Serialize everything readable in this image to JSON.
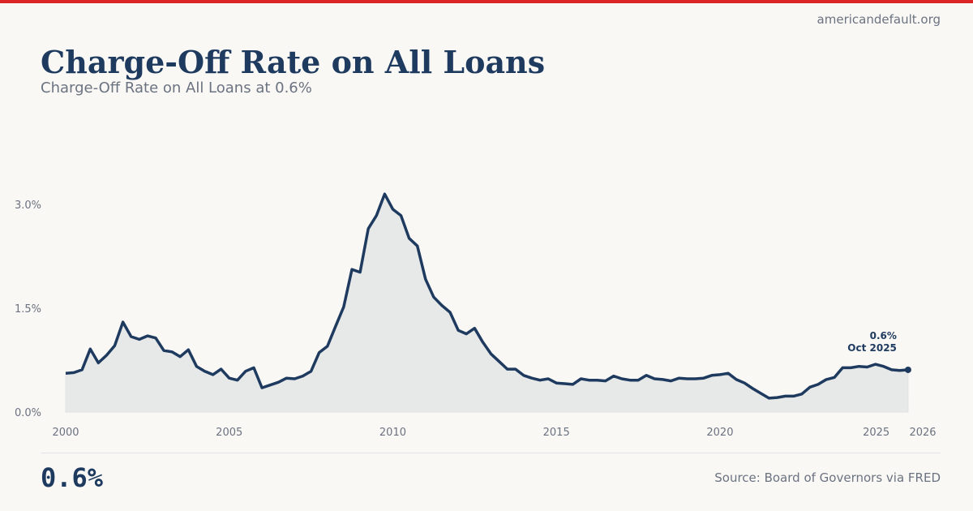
{
  "site": "americandefault.org",
  "title": "Charge-Off Rate on All Loans",
  "subtitle": "Charge-Off Rate on All Loans at 0.6%",
  "headline_value": "0.6%",
  "source": "Source: Board of Governors via FRED",
  "colors": {
    "accent": "#dc2626",
    "line": "#1e3a5f",
    "fill": "#e7e9e9"
  },
  "chart_data": {
    "type": "area",
    "title": "Charge-Off Rate on All Loans",
    "xlabel": "",
    "ylabel": "",
    "x_start": 2000,
    "x_step": 0.25,
    "xlim": [
      2000,
      2026
    ],
    "ylim": [
      0,
      3.0
    ],
    "x_ticks": [
      "2000",
      "2005",
      "2010",
      "2015",
      "2020",
      "2025",
      "2026"
    ],
    "x_tick_values": [
      2000,
      2005,
      2010,
      2015,
      2020,
      2025,
      2026
    ],
    "y_ticks": [
      "0.0%",
      "1.5%",
      "3.0%"
    ],
    "y_tick_values": [
      0,
      1.5,
      3.0
    ],
    "grid": false,
    "values": [
      0.56,
      0.57,
      0.61,
      0.91,
      0.71,
      0.82,
      0.96,
      1.3,
      1.09,
      1.05,
      1.1,
      1.07,
      0.89,
      0.87,
      0.8,
      0.9,
      0.66,
      0.59,
      0.54,
      0.62,
      0.49,
      0.46,
      0.59,
      0.64,
      0.35,
      0.39,
      0.43,
      0.49,
      0.48,
      0.52,
      0.59,
      0.86,
      0.95,
      1.24,
      1.52,
      2.06,
      2.02,
      2.65,
      2.84,
      3.15,
      2.93,
      2.84,
      2.51,
      2.4,
      1.92,
      1.66,
      1.54,
      1.44,
      1.18,
      1.13,
      1.21,
      1.01,
      0.84,
      0.73,
      0.62,
      0.62,
      0.53,
      0.49,
      0.46,
      0.48,
      0.42,
      0.41,
      0.4,
      0.48,
      0.46,
      0.46,
      0.45,
      0.52,
      0.48,
      0.46,
      0.46,
      0.53,
      0.48,
      0.47,
      0.45,
      0.49,
      0.48,
      0.48,
      0.49,
      0.53,
      0.54,
      0.56,
      0.47,
      0.42,
      0.34,
      0.27,
      0.2,
      0.21,
      0.23,
      0.23,
      0.26,
      0.36,
      0.4,
      0.47,
      0.5,
      0.64,
      0.64,
      0.66,
      0.65,
      0.69,
      0.66,
      0.61,
      0.6,
      0.61
    ],
    "annotation": {
      "value": "0.6%",
      "date": "Oct 2025"
    }
  }
}
